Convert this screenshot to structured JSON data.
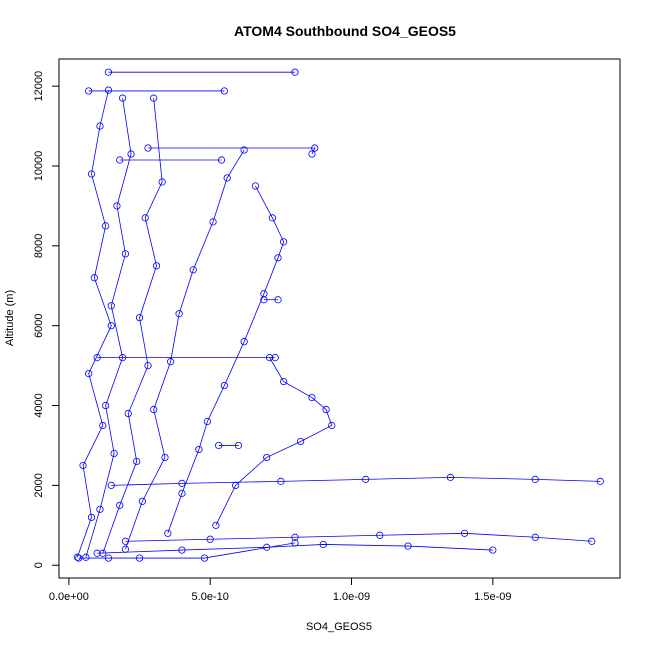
{
  "chart_data": {
    "type": "scatter",
    "title": "ATOM4 Southbound SO4_GEOS5",
    "xlabel": "SO4_GEOS5",
    "ylabel": "Altitude (m)",
    "xlim": [
      -3.5e-11,
      1.95e-09
    ],
    "ylim": [
      -320,
      12680
    ],
    "x_ticks": [
      0,
      5e-10,
      1e-09,
      1.5e-09
    ],
    "x_tick_labels": [
      "0.0e+00",
      "5.0e-10",
      "1.0e-09",
      "1.5e-09"
    ],
    "y_ticks": [
      0,
      2000,
      4000,
      6000,
      8000,
      10000,
      12000
    ],
    "y_tick_labels": [
      "0",
      "2000",
      "4000",
      "6000",
      "8000",
      "10000",
      "12000"
    ],
    "grid": false,
    "legend": "none",
    "color": "#0000ff",
    "series": [
      {
        "x": [
          3e-11,
          8e-11,
          5e-11,
          1.2e-10,
          7e-11,
          1.5e-10,
          9e-11,
          1.3e-10,
          8e-11,
          1.1e-10,
          1.4e-10
        ],
        "y": [
          200,
          1200,
          2500,
          3500,
          4800,
          6000,
          7200,
          8500,
          9800,
          11000,
          11900
        ]
      },
      {
        "x": [
          6e-11,
          1.1e-10,
          1.6e-10,
          1.3e-10,
          1.9e-10,
          1.5e-10,
          2e-10,
          1.7e-10,
          2.2e-10,
          1.9e-10
        ],
        "y": [
          200,
          1400,
          2800,
          4000,
          5200,
          6500,
          7800,
          9000,
          10300,
          11700
        ]
      },
      {
        "x": [
          1.2e-10,
          1.8e-10,
          2.4e-10,
          2.1e-10,
          2.8e-10,
          2.5e-10,
          3.1e-10,
          2.7e-10,
          3.3e-10,
          3e-10
        ],
        "y": [
          300,
          1500,
          2600,
          3800,
          5000,
          6200,
          7500,
          8700,
          9600,
          11700
        ]
      },
      {
        "x": [
          2e-10,
          2.6e-10,
          3.4e-10,
          3e-10,
          3.6e-10,
          3.9e-10,
          4.4e-10,
          5.1e-10,
          5.6e-10,
          6.2e-10
        ],
        "y": [
          400,
          1600,
          2700,
          3900,
          5100,
          6300,
          7400,
          8600,
          9700,
          10400
        ]
      },
      {
        "x": [
          3.5e-10,
          4e-10,
          4.6e-10,
          4.9e-10,
          5.5e-10,
          6.2e-10,
          6.9e-10,
          7.4e-10,
          7.6e-10,
          7.2e-10,
          6.6e-10
        ],
        "y": [
          800,
          1800,
          2900,
          3600,
          4500,
          5600,
          6800,
          7700,
          8100,
          8700,
          9500
        ]
      },
      {
        "x": [
          5.2e-10,
          5.9e-10,
          7e-10,
          8.2e-10,
          9.3e-10,
          9.1e-10,
          8.6e-10,
          7.6e-10,
          7.1e-10
        ],
        "y": [
          1000,
          2000,
          2700,
          3100,
          3500,
          3900,
          4200,
          4600,
          5200
        ]
      },
      {
        "x": [
          1.5e-10,
          4e-10,
          7.5e-10,
          1.05e-09,
          1.35e-09,
          1.65e-09,
          1.88e-09
        ],
        "y": [
          2000,
          2050,
          2100,
          2150,
          2200,
          2150,
          2100
        ]
      },
      {
        "x": [
          2e-10,
          5e-10,
          8e-10,
          1.1e-09,
          1.4e-09,
          1.65e-09,
          1.85e-09
        ],
        "y": [
          600,
          650,
          700,
          750,
          800,
          700,
          600
        ]
      },
      {
        "x": [
          1e-10,
          4e-10,
          7e-10,
          9e-10,
          1.2e-09,
          1.5e-09
        ],
        "y": [
          300,
          380,
          450,
          520,
          480,
          380
        ]
      },
      {
        "x": [
          1.4e-10,
          8e-10
        ],
        "y": [
          12350,
          12350
        ]
      },
      {
        "x": [
          7e-11,
          5.5e-10
        ],
        "y": [
          11880,
          11880
        ]
      },
      {
        "x": [
          2.8e-10,
          8.7e-10,
          8.6e-10
        ],
        "y": [
          10450,
          10450,
          10300
        ]
      },
      {
        "x": [
          1.8e-10,
          5.4e-10
        ],
        "y": [
          10150,
          10150
        ]
      },
      {
        "x": [
          1e-10,
          7.3e-10
        ],
        "y": [
          5200,
          5200
        ]
      },
      {
        "x": [
          5.3e-10,
          6e-10
        ],
        "y": [
          3000,
          3000
        ]
      },
      {
        "x": [
          6.9e-10,
          7.4e-10
        ],
        "y": [
          6650,
          6650
        ]
      },
      {
        "x": [
          3.5e-11,
          1.4e-10,
          2.5e-10,
          4.8e-10,
          8e-10
        ],
        "y": [
          180,
          180,
          180,
          180,
          560
        ]
      }
    ]
  }
}
